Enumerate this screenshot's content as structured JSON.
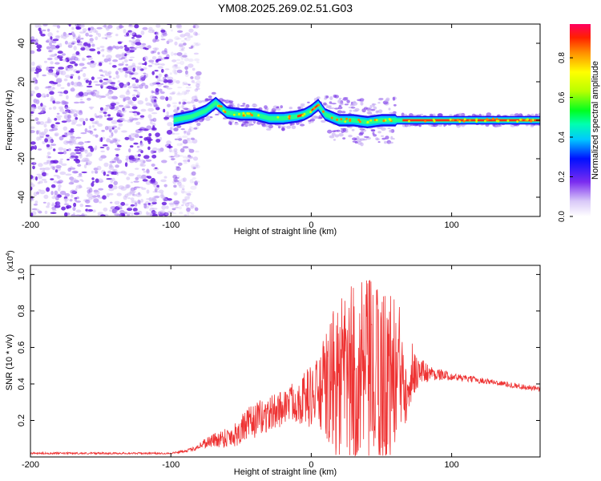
{
  "title": "YM08.2025.269.02.51.G03",
  "chart_data": [
    {
      "type": "heatmap",
      "title": "YM08.2025.269.02.51.G03",
      "xlabel": "Height of straight line (km)",
      "ylabel": "Frequency (Hz)",
      "xlim": [
        -200,
        163
      ],
      "ylim": [
        -50,
        50
      ],
      "xticks": [
        -200,
        -100,
        0,
        100
      ],
      "yticks": [
        -40,
        -20,
        0,
        20,
        40
      ],
      "colorbar": {
        "label": "Normalized spectral amplitude",
        "range": [
          0,
          0.97
        ],
        "ticks": [
          0.0,
          0.2,
          0.4,
          0.6,
          0.8
        ]
      },
      "ridge": {
        "description": "dominant frequency ridge vs height",
        "x": [
          -98,
          -85,
          -75,
          -68,
          -60,
          -50,
          -40,
          -30,
          -20,
          -10,
          -5,
          0,
          5,
          10,
          20,
          30,
          40,
          50,
          60,
          70,
          100,
          130,
          163
        ],
        "freq": [
          0,
          2,
          5,
          9,
          4,
          3,
          3,
          1,
          1,
          2,
          3,
          5,
          8,
          3,
          0,
          0,
          -1,
          0,
          0,
          0,
          0,
          0,
          0
        ]
      },
      "noise_region_x": [
        -200,
        -85
      ]
    },
    {
      "type": "line",
      "xlabel": "Height of straight line (km)",
      "ylabel": "SNR (10 * v/v)",
      "yscale_label": "(x10",
      "yscale_exp": "4",
      "xlim": [
        -200,
        163
      ],
      "ylim": [
        0,
        1.05
      ],
      "xticks": [
        -200,
        -100,
        0,
        100
      ],
      "yticks": [
        0.2,
        0.4,
        0.6,
        0.8,
        1.0
      ],
      "series": [
        {
          "name": "SNR",
          "color": "#ee3333",
          "envelope": {
            "x": [
              -200,
              -150,
              -100,
              -85,
              -75,
              -65,
              -55,
              -45,
              -35,
              -25,
              -15,
              -5,
              5,
              15,
              25,
              35,
              45,
              55,
              65,
              75,
              85,
              100,
              130,
              163
            ],
            "mean": [
              0.02,
              0.02,
              0.02,
              0.04,
              0.08,
              0.1,
              0.12,
              0.18,
              0.22,
              0.25,
              0.3,
              0.32,
              0.35,
              0.4,
              0.42,
              0.42,
              0.42,
              0.44,
              0.46,
              0.47,
              0.46,
              0.44,
              0.41,
              0.37
            ],
            "amp": [
              0.005,
              0.005,
              0.005,
              0.01,
              0.03,
              0.05,
              0.07,
              0.09,
              0.1,
              0.1,
              0.1,
              0.15,
              0.2,
              0.4,
              0.5,
              0.55,
              0.55,
              0.5,
              0.35,
              0.1,
              0.04,
              0.02,
              0.015,
              0.015
            ]
          }
        }
      ]
    }
  ]
}
